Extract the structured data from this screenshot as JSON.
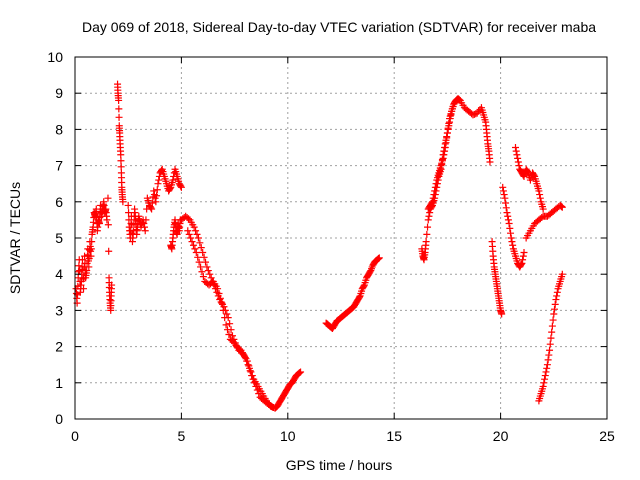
{
  "chart_data": {
    "type": "scatter",
    "title": "Day 069 of 2018, Sidereal Day-to-day VTEC variation (SDTVAR) for receiver maba",
    "xlabel": "GPS time / hours",
    "ylabel": "SDTVAR / TECUs",
    "xlim": [
      0,
      25
    ],
    "ylim": [
      0,
      10
    ],
    "xticks": [
      0,
      5,
      10,
      15,
      20,
      25
    ],
    "yticks": [
      0,
      1,
      2,
      3,
      4,
      5,
      6,
      7,
      8,
      9,
      10
    ],
    "grid": true,
    "marker": "+",
    "series_color": "#ff0000",
    "series": [
      {
        "name": "SDTVAR",
        "segments": [
          {
            "x": [
              0.05,
              0.1,
              0.15,
              0.2,
              0.25,
              0.3,
              0.35,
              0.4,
              0.45,
              0.5,
              0.55,
              0.6,
              0.65,
              0.7,
              0.75,
              0.8,
              0.85,
              0.9,
              0.95,
              1.0,
              1.05,
              1.1,
              1.15,
              1.2,
              1.25,
              1.3,
              1.35,
              1.4,
              1.45,
              1.5
            ],
            "y": [
              3.6,
              3.2,
              3.9,
              4.4,
              3.5,
              3.8,
              4.4,
              3.6,
              4.5,
              3.9,
              4.1,
              4.7,
              4.2,
              4.9,
              4.5,
              5.1,
              5.3,
              5.7,
              5.6,
              5.8,
              5.2,
              5.5,
              5.4,
              5.9,
              5.6,
              5.8,
              6.0,
              5.7,
              5.8,
              5.5
            ]
          },
          {
            "x": [
              1.55,
              1.6,
              1.62,
              1.65,
              1.68,
              1.7,
              1.72
            ],
            "y": [
              6.1,
              3.9,
              3.5,
              3.2,
              3.0,
              3.4,
              3.7
            ]
          },
          {
            "x": [
              2.0,
              2.02,
              2.05,
              2.08,
              2.1,
              2.12,
              2.15,
              2.18,
              2.2,
              2.22,
              2.25
            ],
            "y": [
              9.25,
              9.0,
              8.8,
              8.1,
              7.9,
              7.6,
              7.3,
              6.8,
              6.4,
              6.2,
              6.0
            ]
          },
          {
            "x": [
              2.5,
              2.55,
              2.6,
              2.65,
              2.7,
              2.75,
              2.8,
              2.85,
              2.9,
              2.95,
              3.0,
              3.1,
              3.2,
              3.3,
              3.4,
              3.5,
              3.6,
              3.7,
              3.8,
              3.9,
              4.0,
              4.1,
              4.2,
              4.3,
              4.4,
              4.5,
              4.6,
              4.7,
              4.8,
              4.9,
              5.0
            ],
            "y": [
              5.9,
              5.3,
              5.0,
              5.6,
              4.9,
              5.2,
              5.8,
              5.5,
              5.1,
              5.4,
              5.6,
              5.3,
              5.5,
              5.2,
              6.1,
              5.9,
              5.8,
              6.3,
              6.0,
              6.5,
              6.8,
              6.9,
              6.7,
              6.5,
              6.3,
              6.4,
              6.6,
              6.9,
              6.7,
              6.5,
              6.4
            ]
          },
          {
            "x": [
              4.5,
              4.55,
              4.6,
              4.65,
              4.7,
              4.75,
              4.8,
              4.85,
              4.9,
              4.95
            ],
            "y": [
              4.8,
              4.7,
              5.0,
              5.3,
              5.5,
              5.2,
              5.1,
              5.4,
              5.2,
              5.5
            ]
          },
          {
            "x": [
              5.0,
              5.2,
              5.4,
              5.6,
              5.8,
              6.0,
              6.2,
              6.4,
              6.6,
              6.8,
              7.0,
              7.2,
              7.4,
              7.6,
              7.8,
              8.0,
              8.2,
              8.4,
              8.6,
              8.8,
              9.0,
              9.2,
              9.4
            ],
            "y": [
              5.5,
              5.6,
              5.5,
              5.3,
              5.0,
              4.6,
              4.2,
              3.9,
              3.6,
              3.3,
              3.1,
              2.8,
              2.3,
              2.0,
              1.9,
              1.7,
              1.4,
              1.1,
              0.9,
              0.7,
              0.5,
              0.35,
              0.3
            ]
          },
          {
            "x": [
              5.3,
              5.5,
              5.7,
              5.9,
              6.1,
              6.3,
              6.5,
              6.7,
              6.9,
              7.1,
              7.3,
              7.5,
              7.7,
              7.9,
              8.1,
              8.3,
              8.5,
              8.7,
              8.9,
              9.1,
              9.3
            ],
            "y": [
              5.2,
              4.9,
              4.6,
              4.2,
              3.8,
              3.7,
              3.8,
              3.6,
              3.2,
              2.6,
              2.2,
              2.1,
              1.9,
              1.8,
              1.6,
              1.2,
              0.9,
              0.6,
              0.5,
              0.4,
              0.32
            ]
          },
          {
            "x": [
              9.4,
              9.5,
              9.6,
              9.7,
              9.8,
              9.9,
              10.0,
              10.1,
              10.2,
              10.3,
              10.4,
              10.5,
              10.6
            ],
            "y": [
              0.3,
              0.35,
              0.45,
              0.55,
              0.65,
              0.75,
              0.85,
              0.95,
              1.0,
              1.1,
              1.2,
              1.25,
              1.3
            ]
          },
          {
            "x": [
              11.8,
              11.9,
              12.0,
              12.1,
              12.2,
              12.3,
              12.4,
              12.5,
              12.6,
              12.7,
              12.8,
              12.9,
              13.0,
              13.1,
              13.2,
              13.3,
              13.4,
              13.5,
              13.6,
              13.7,
              13.8,
              13.9,
              14.0,
              14.1,
              14.2,
              14.3
            ],
            "y": [
              2.65,
              2.6,
              2.55,
              2.5,
              2.6,
              2.7,
              2.75,
              2.8,
              2.85,
              2.9,
              2.95,
              3.0,
              3.05,
              3.1,
              3.2,
              3.3,
              3.4,
              3.6,
              3.7,
              3.9,
              4.0,
              4.1,
              4.25,
              4.35,
              4.4,
              4.45
            ]
          },
          {
            "x": [
              16.3,
              16.35,
              16.4,
              16.45,
              16.5,
              16.6,
              16.7,
              16.8,
              16.9,
              17.0,
              17.1,
              17.2,
              17.3,
              17.4,
              17.5,
              17.6,
              17.7,
              17.8,
              17.9,
              18.0,
              18.1
            ],
            "y": [
              4.7,
              4.5,
              4.4,
              4.6,
              4.9,
              5.5,
              5.8,
              5.9,
              6.1,
              6.4,
              6.7,
              6.9,
              7.3,
              7.6,
              7.9,
              8.3,
              8.5,
              8.7,
              8.8,
              8.85,
              8.8
            ]
          },
          {
            "x": [
              16.6,
              16.7,
              16.8,
              16.9,
              17.0,
              17.1,
              17.2,
              17.3,
              17.4,
              17.5,
              17.6,
              17.7,
              17.8
            ],
            "y": [
              5.8,
              5.9,
              6.0,
              6.3,
              6.6,
              6.8,
              7.0,
              7.2,
              7.5,
              7.9,
              8.2,
              8.5,
              8.7
            ]
          },
          {
            "x": [
              18.1,
              18.3,
              18.5,
              18.7,
              18.9,
              19.1,
              19.2,
              19.3,
              19.35,
              19.4,
              19.45,
              19.5
            ],
            "y": [
              8.8,
              8.6,
              8.5,
              8.4,
              8.45,
              8.6,
              8.4,
              8.2,
              7.9,
              7.6,
              7.4,
              7.1
            ]
          },
          {
            "x": [
              19.6,
              19.65,
              19.7,
              19.75,
              19.8,
              19.85,
              19.9,
              19.95,
              20.0,
              20.05
            ],
            "y": [
              4.9,
              4.5,
              4.2,
              4.0,
              3.8,
              3.6,
              3.4,
              3.2,
              3.0,
              2.9
            ]
          },
          {
            "x": [
              20.1,
              20.2,
              20.3,
              20.4,
              20.5,
              20.6,
              20.7,
              20.8,
              20.9,
              21.0,
              21.1
            ],
            "y": [
              6.4,
              6.1,
              5.7,
              5.4,
              5.0,
              4.7,
              4.5,
              4.3,
              4.2,
              4.3,
              4.6
            ]
          },
          {
            "x": [
              20.7,
              20.8,
              20.9,
              21.0,
              21.1,
              21.2,
              21.3,
              21.4,
              21.5,
              21.6,
              21.7,
              21.8,
              21.9,
              22.0
            ],
            "y": [
              7.5,
              7.2,
              6.9,
              6.8,
              6.7,
              6.9,
              6.8,
              6.6,
              6.8,
              6.7,
              6.5,
              6.3,
              6.0,
              5.8
            ]
          },
          {
            "x": [
              21.2,
              21.4,
              21.6,
              21.8,
              22.0,
              22.2,
              22.4,
              22.6,
              22.8,
              22.9
            ],
            "y": [
              5.0,
              5.2,
              5.4,
              5.5,
              5.6,
              5.6,
              5.7,
              5.8,
              5.9,
              5.85
            ]
          },
          {
            "x": [
              21.8,
              21.9,
              22.0,
              22.1,
              22.2,
              22.3,
              22.4,
              22.5,
              22.6,
              22.7,
              22.8,
              22.9
            ],
            "y": [
              0.5,
              0.7,
              0.9,
              1.2,
              1.5,
              1.9,
              2.4,
              2.9,
              3.3,
              3.6,
              3.8,
              4.0
            ]
          }
        ]
      }
    ]
  }
}
